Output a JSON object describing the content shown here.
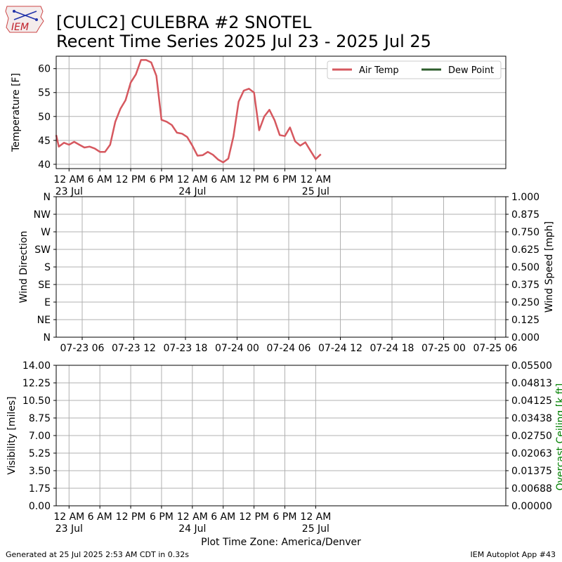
{
  "title_line1": "[CULC2] CULEBRA #2 SNOTEL",
  "title_line2": "Recent Time Series 2025 Jul 23 - 2025 Jul 25",
  "footer_left": "Generated at 25 Jul 2025 2:53 AM CDT in 0.32s",
  "footer_right": "IEM Autoplot App #43",
  "xaxis_title": "Plot Time Zone: America/Denver",
  "logo_text": "IEM",
  "colors": {
    "air_temp": "#d6585f",
    "dew_point": "#2e5e2c",
    "ceiling_label": "#008000",
    "grid": "#b0b0b0"
  },
  "chart_data": [
    {
      "type": "line",
      "ylabel": "Temperature [F]",
      "ylim": [
        39.1,
        62.6
      ],
      "yticks": [
        40,
        45,
        50,
        55,
        60
      ],
      "xlim_hours": [
        -2.5,
        85.0
      ],
      "x_unit": "hours since 2025-07-23 00:00 America/Denver",
      "xticks": [
        {
          "hour": 0,
          "label": "12 AM",
          "sub": "23 Jul"
        },
        {
          "hour": 6,
          "label": "6 AM",
          "sub": ""
        },
        {
          "hour": 12,
          "label": "12 PM",
          "sub": ""
        },
        {
          "hour": 18,
          "label": "6 PM",
          "sub": ""
        },
        {
          "hour": 24,
          "label": "12 AM",
          "sub": "24 Jul"
        },
        {
          "hour": 30,
          "label": "6 AM",
          "sub": ""
        },
        {
          "hour": 36,
          "label": "12 PM",
          "sub": ""
        },
        {
          "hour": 42,
          "label": "6 PM",
          "sub": ""
        },
        {
          "hour": 48,
          "label": "12 AM",
          "sub": "25 Jul"
        }
      ],
      "legend": {
        "placement": "top-right",
        "entries": [
          "Air Temp",
          "Dew Point"
        ]
      },
      "series": [
        {
          "name": "Air Temp",
          "x": [
            -3,
            -2,
            -1,
            0,
            1,
            2,
            3,
            4,
            5,
            6,
            7,
            8,
            9,
            10,
            11,
            12,
            13,
            14,
            15,
            16,
            17,
            18,
            19,
            20,
            21,
            22,
            23,
            24,
            25,
            26,
            27,
            28,
            29,
            30,
            31,
            32,
            33,
            34,
            35,
            36,
            37,
            38,
            39,
            40,
            41,
            42,
            43,
            44,
            45,
            46,
            47,
            48,
            49
          ],
          "y": [
            46.1,
            43.7,
            44.5,
            44.1,
            44.7,
            44.1,
            43.5,
            43.7,
            43.3,
            42.6,
            42.6,
            44.1,
            48.9,
            51.6,
            53.4,
            57.1,
            58.8,
            61.8,
            61.8,
            61.3,
            58.5,
            49.3,
            48.9,
            48.2,
            46.6,
            46.4,
            45.7,
            43.9,
            41.8,
            41.9,
            42.6,
            42.0,
            41.0,
            40.4,
            41.2,
            45.8,
            53.1,
            55.4,
            55.8,
            55.0,
            47.1,
            50.0,
            51.4,
            49.2,
            46.1,
            45.9,
            47.7,
            44.8,
            43.9,
            44.6,
            42.8,
            41.1,
            42.1
          ]
        },
        {
          "name": "Dew Point",
          "x": [],
          "y": []
        }
      ]
    },
    {
      "type": "line",
      "ylabel": "Wind Direction",
      "y2label": "Wind Speed [mph]",
      "yticks": [
        "N",
        "NE",
        "E",
        "SE",
        "S",
        "SW",
        "W",
        "NW",
        "N"
      ],
      "y2ticks": [
        "0.000",
        "0.125",
        "0.250",
        "0.375",
        "0.500",
        "0.625",
        "0.750",
        "0.875",
        "1.000"
      ],
      "xticks": [
        "07-23 06",
        "07-23 12",
        "07-23 18",
        "07-24 00",
        "07-24 06",
        "07-24 12",
        "07-24 18",
        "07-25 00",
        "07-25 06"
      ],
      "series": []
    },
    {
      "type": "line",
      "ylabel": "Visibility [miles]",
      "y2label": "Overcast Ceiling [k ft]",
      "yticks": [
        "0.00",
        "1.75",
        "3.50",
        "5.25",
        "7.00",
        "8.75",
        "10.50",
        "12.25",
        "14.00"
      ],
      "y2ticks": [
        "0.00000",
        "0.00688",
        "0.01375",
        "0.02063",
        "0.02750",
        "0.03438",
        "0.04125",
        "0.04813",
        "0.05500"
      ],
      "xticks": [
        {
          "label": "12 AM",
          "sub": "23 Jul"
        },
        {
          "label": "6 AM",
          "sub": ""
        },
        {
          "label": "12 PM",
          "sub": ""
        },
        {
          "label": "6 PM",
          "sub": ""
        },
        {
          "label": "12 AM",
          "sub": "24 Jul"
        },
        {
          "label": "6 AM",
          "sub": ""
        },
        {
          "label": "12 PM",
          "sub": ""
        },
        {
          "label": "6 PM",
          "sub": ""
        },
        {
          "label": "12 AM",
          "sub": "25 Jul"
        }
      ],
      "series": []
    }
  ]
}
